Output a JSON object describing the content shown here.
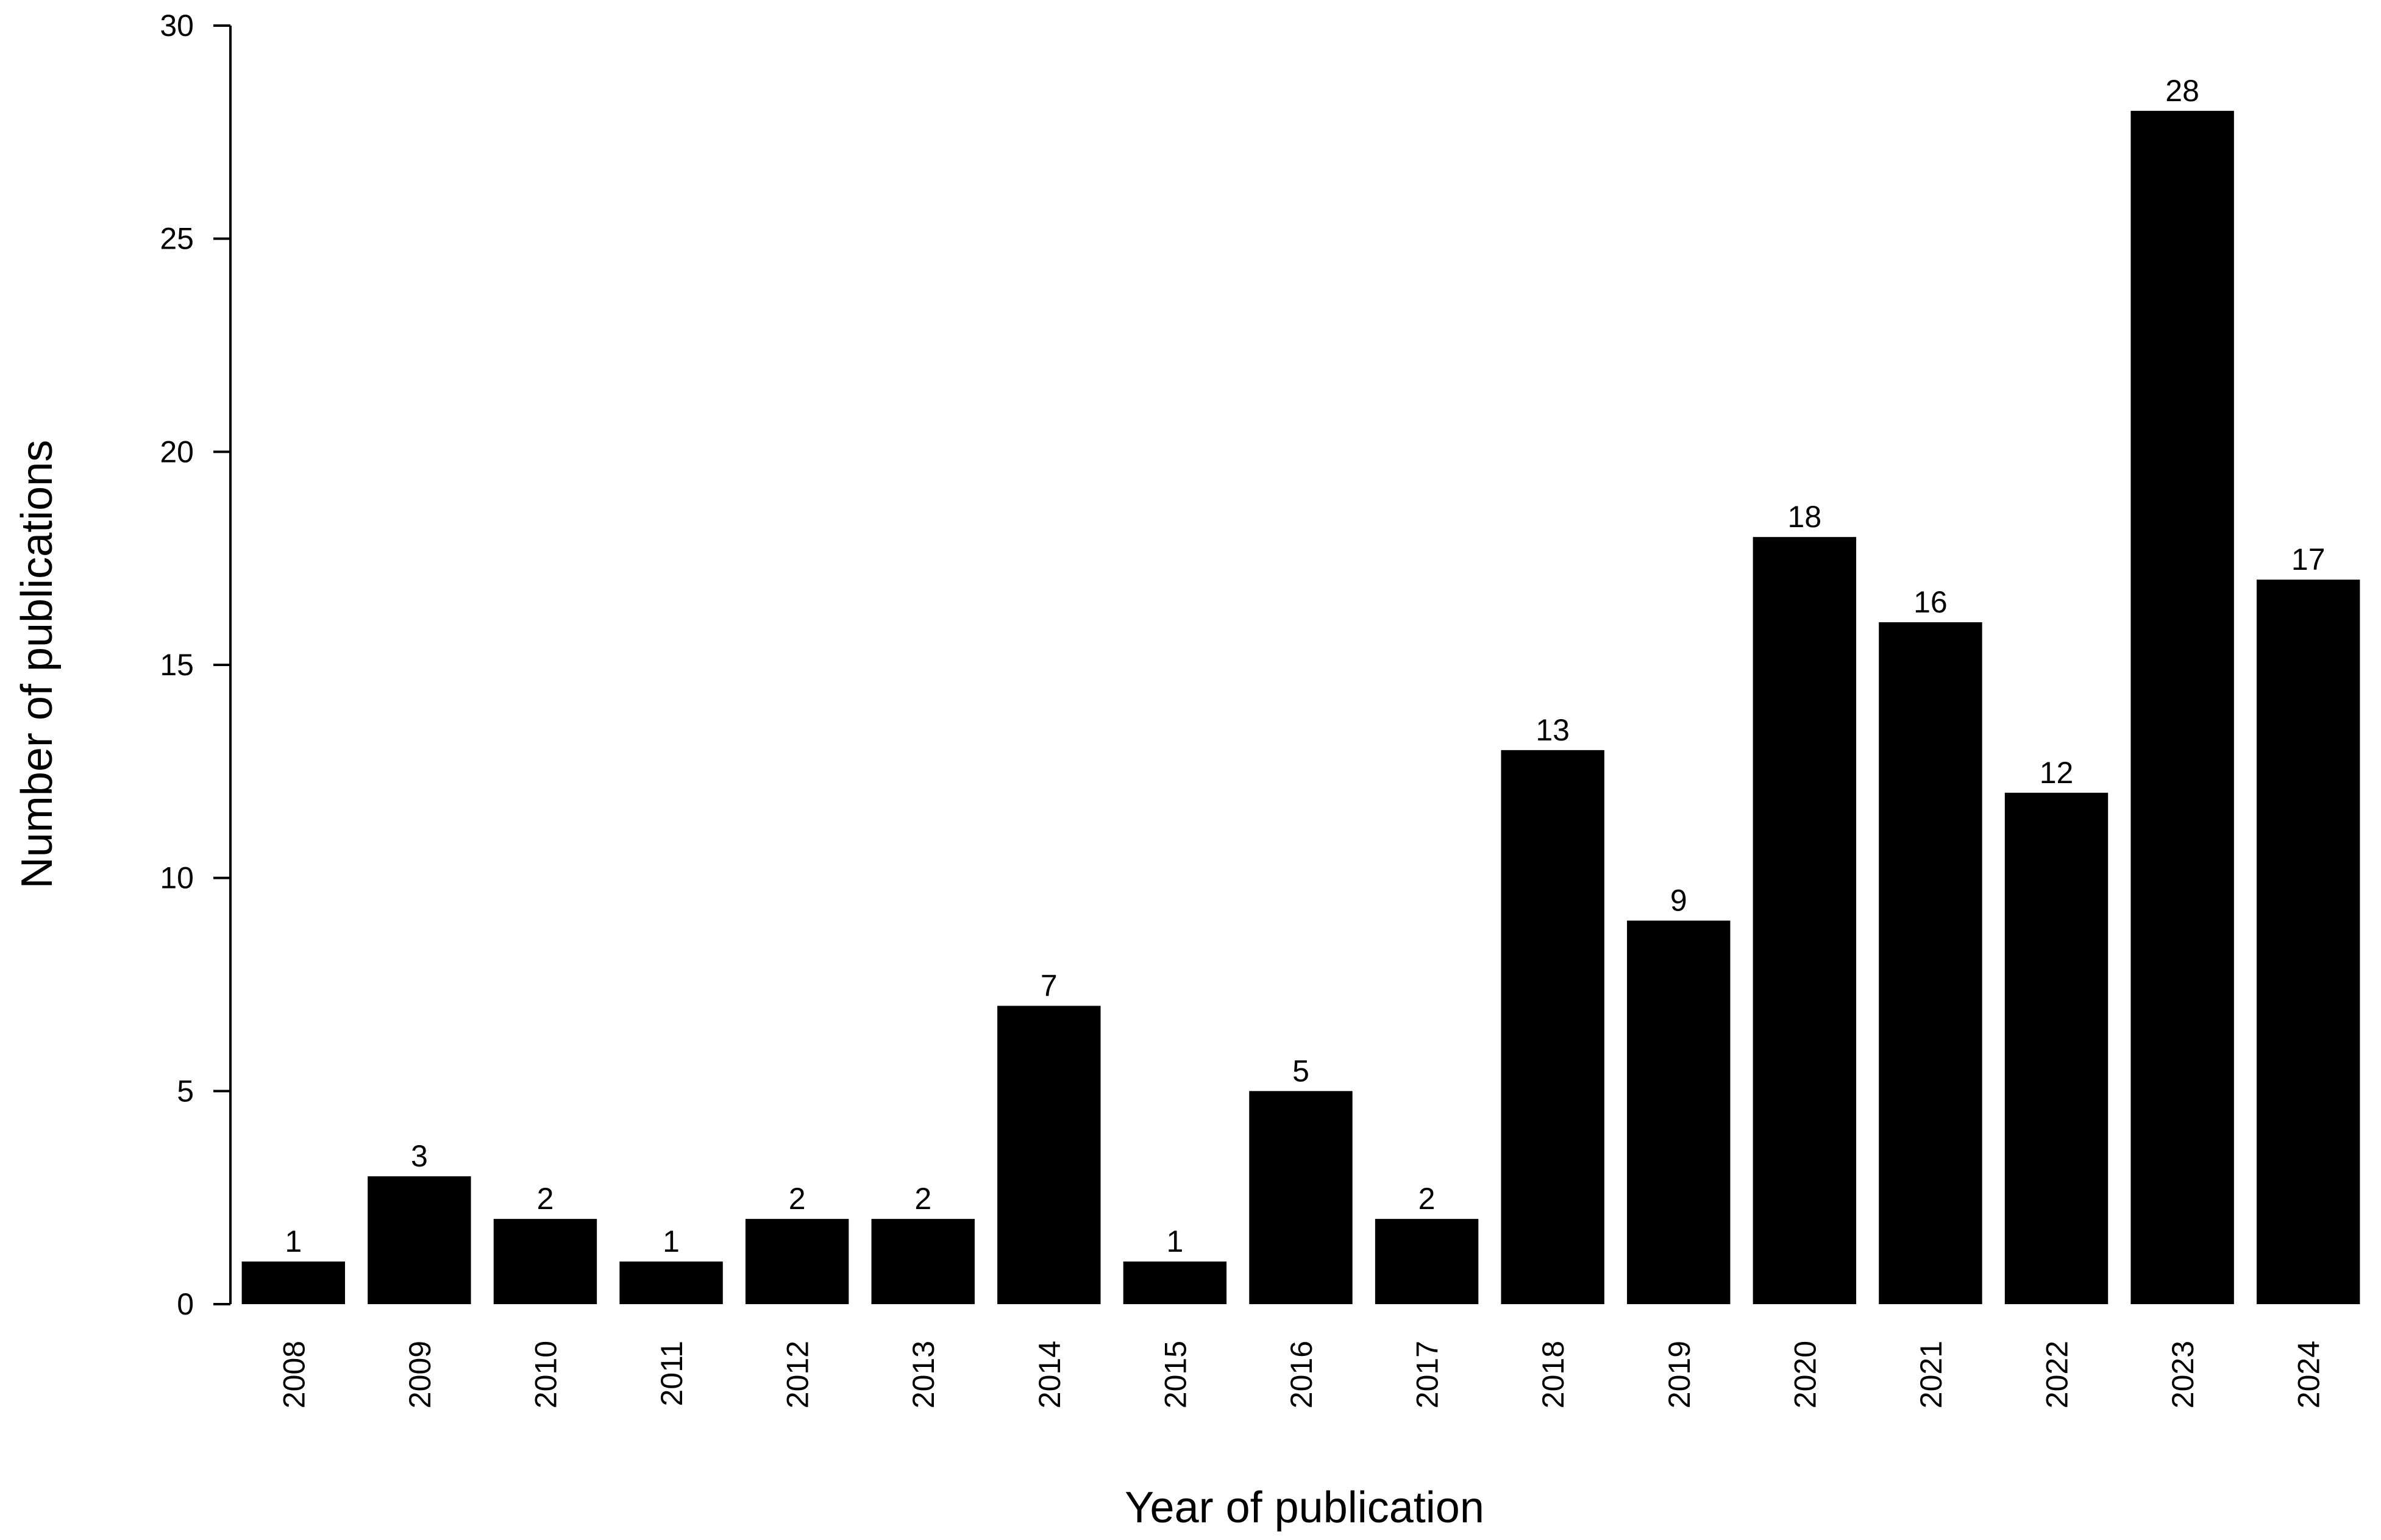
{
  "chart_data": {
    "type": "bar",
    "xlabel": "Year of publication",
    "ylabel": "Number of publications",
    "categories": [
      "2008",
      "2009",
      "2010",
      "2011",
      "2012",
      "2013",
      "2014",
      "2015",
      "2016",
      "2017",
      "2018",
      "2019",
      "2020",
      "2021",
      "2022",
      "2023",
      "2024"
    ],
    "values": [
      1,
      3,
      2,
      1,
      2,
      2,
      7,
      1,
      5,
      2,
      13,
      9,
      18,
      16,
      12,
      28,
      17
    ],
    "ylim": [
      0,
      30
    ],
    "yticks": [
      0,
      5,
      10,
      15,
      20,
      25,
      30
    ],
    "grid": false,
    "legend": "none",
    "bar_color": "#000000",
    "data_labels": true
  }
}
